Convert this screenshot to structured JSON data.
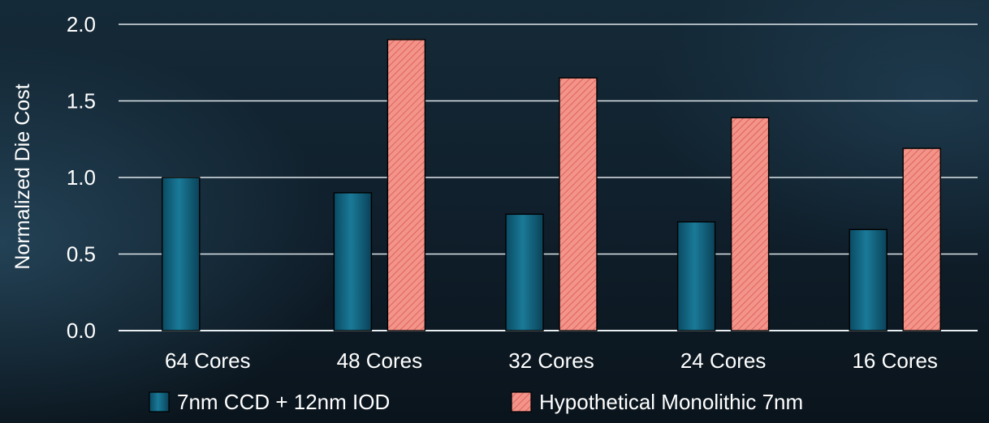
{
  "chart_data": {
    "type": "bar",
    "title": "",
    "xlabel": "",
    "ylabel": "Normalized Die Cost",
    "ylim": [
      0,
      2.0
    ],
    "yticks": [
      "0.0",
      "0.5",
      "1.0",
      "1.5",
      "2.0"
    ],
    "grid": true,
    "legend_position": "bottom",
    "categories": [
      "64 Cores",
      "48 Cores",
      "32 Cores",
      "24 Cores",
      "16 Cores"
    ],
    "series": [
      {
        "name": "7nm CCD + 12nm IOD",
        "values": [
          1.0,
          0.9,
          0.76,
          0.71,
          0.66
        ],
        "color": "#0e5a74",
        "pattern": "solid-gradient"
      },
      {
        "name": "Hypothetical Monolithic 7nm",
        "values": [
          null,
          1.9,
          1.65,
          1.39,
          1.19
        ],
        "color": "#f08a80",
        "pattern": "diagonal-hatch"
      }
    ]
  }
}
